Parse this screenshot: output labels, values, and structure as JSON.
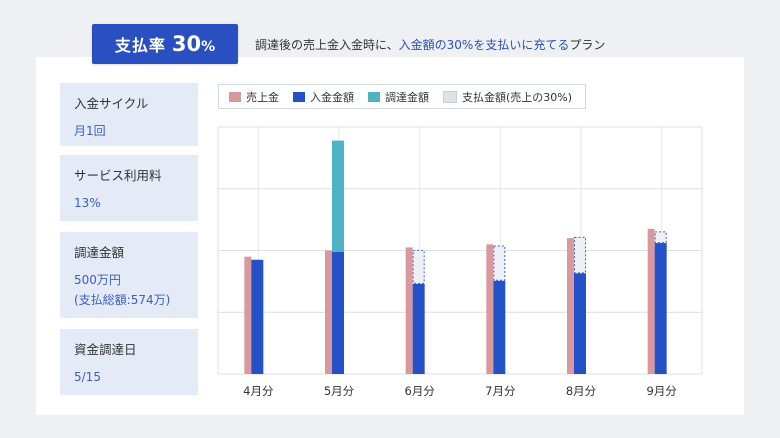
{
  "badge": {
    "label": "支払率",
    "value": "30",
    "unit": "%"
  },
  "description": {
    "prefix": "調達後の売上金入金時に、",
    "highlight": "入金額の30%を支払いに充てる",
    "suffix": "プラン"
  },
  "info_cards": [
    {
      "label": "入金サイクル",
      "value": "月1回"
    },
    {
      "label": "サービス利用料",
      "value": "13%"
    },
    {
      "label": "調達金額",
      "value": "500万円",
      "sub": "(支払総額:574万)"
    },
    {
      "label": "資金調達日",
      "value": "5/15"
    }
  ],
  "legend": [
    {
      "label": "売上金",
      "color": "#d9999c"
    },
    {
      "label": "入金金額",
      "color": "#2450c8"
    },
    {
      "label": "調達金額",
      "color": "#4fb3c6"
    },
    {
      "label": "支払金額(売上の30%)",
      "color": "#dde1e8"
    }
  ],
  "chart_data": {
    "type": "bar",
    "categories": [
      "4月分",
      "5月分",
      "6月分",
      "7月分",
      "8月分",
      "9月分"
    ],
    "ylim": [
      0,
      40
    ],
    "series": [
      {
        "name": "売上金",
        "values": [
          19,
          20,
          20.5,
          21,
          22,
          23.5
        ]
      },
      {
        "name": "入金金額",
        "values": [
          18.5,
          19.8,
          14.6,
          15.1,
          16.3,
          21.2
        ]
      },
      {
        "name": "調達金額",
        "values": [
          0,
          18,
          0,
          0,
          0,
          0
        ]
      },
      {
        "name": "支払金額(売上の30%)",
        "values": [
          0,
          0,
          5.5,
          5.7,
          5.9,
          1.9
        ]
      }
    ],
    "grid": true
  }
}
